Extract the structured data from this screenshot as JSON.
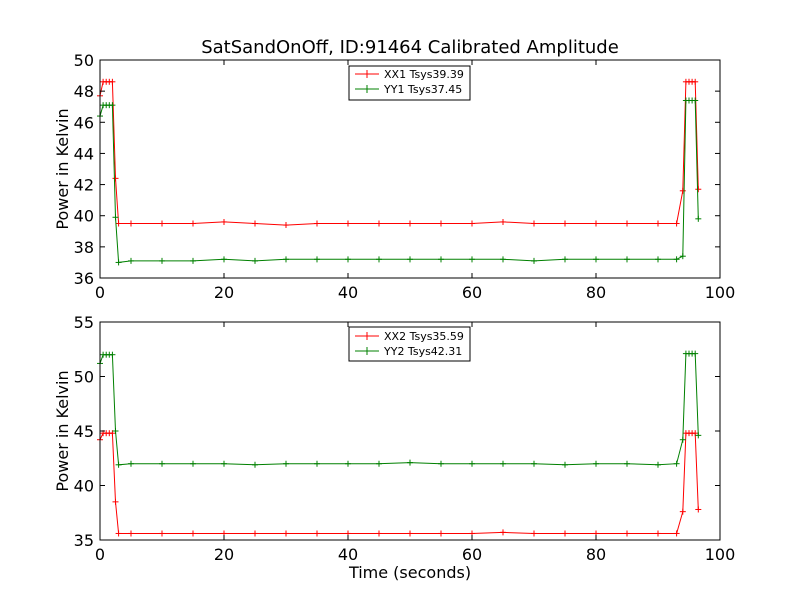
{
  "chart_data": [
    {
      "type": "line",
      "title": "SatSandOnOff, ID:91464 Calibrated Amplitude",
      "xlabel": "",
      "ylabel": "Power in Kelvin",
      "xlim": [
        0,
        100
      ],
      "ylim": [
        36,
        50
      ],
      "xticks": [
        "0",
        "20",
        "40",
        "60",
        "80",
        "100"
      ],
      "yticks": [
        "36",
        "38",
        "40",
        "42",
        "44",
        "46",
        "48",
        "50"
      ],
      "legend_position": "top-center",
      "grid": false,
      "series": [
        {
          "name": "XX1 Tsys39.39",
          "color": "#ff0000",
          "x": [
            0,
            0.5,
            1,
            1.5,
            2,
            2.5,
            3,
            5,
            10,
            15,
            20,
            25,
            30,
            35,
            40,
            45,
            50,
            55,
            60,
            65,
            70,
            75,
            80,
            85,
            90,
            93,
            94,
            94.5,
            95,
            95.5,
            96,
            96.5
          ],
          "y": [
            47.7,
            48.6,
            48.6,
            48.6,
            48.6,
            42.4,
            39.5,
            39.5,
            39.5,
            39.5,
            39.6,
            39.5,
            39.4,
            39.5,
            39.5,
            39.5,
            39.5,
            39.5,
            39.5,
            39.6,
            39.5,
            39.5,
            39.5,
            39.5,
            39.5,
            39.5,
            41.6,
            48.6,
            48.6,
            48.6,
            48.6,
            41.7
          ]
        },
        {
          "name": "YY1 Tsys37.45",
          "color": "#008000",
          "x": [
            0,
            0.5,
            1,
            1.5,
            2,
            2.5,
            3,
            5,
            10,
            15,
            20,
            25,
            30,
            35,
            40,
            45,
            50,
            55,
            60,
            65,
            70,
            75,
            80,
            85,
            90,
            93,
            94,
            94.5,
            95,
            95.5,
            96,
            96.5
          ],
          "y": [
            46.4,
            47.1,
            47.1,
            47.1,
            47.1,
            39.9,
            37.0,
            37.1,
            37.1,
            37.1,
            37.2,
            37.1,
            37.2,
            37.2,
            37.2,
            37.2,
            37.2,
            37.2,
            37.2,
            37.2,
            37.1,
            37.2,
            37.2,
            37.2,
            37.2,
            37.2,
            37.4,
            47.4,
            47.4,
            47.4,
            47.4,
            39.8
          ]
        }
      ]
    },
    {
      "type": "line",
      "title": "",
      "xlabel": "Time (seconds)",
      "ylabel": "Power in Kelvin",
      "xlim": [
        0,
        100
      ],
      "ylim": [
        35,
        55
      ],
      "xticks": [
        "0",
        "20",
        "40",
        "60",
        "80",
        "100"
      ],
      "yticks": [
        "35",
        "40",
        "45",
        "50",
        "55"
      ],
      "legend_position": "top-center",
      "grid": false,
      "series": [
        {
          "name": "XX2 Tsys35.59",
          "color": "#ff0000",
          "x": [
            0,
            0.5,
            1,
            1.5,
            2,
            2.5,
            3,
            5,
            10,
            15,
            20,
            25,
            30,
            35,
            40,
            45,
            50,
            55,
            60,
            65,
            70,
            75,
            80,
            85,
            90,
            93,
            94,
            94.5,
            95,
            95.5,
            96,
            96.5
          ],
          "y": [
            44.2,
            44.8,
            44.8,
            44.8,
            44.8,
            38.5,
            35.6,
            35.6,
            35.6,
            35.6,
            35.6,
            35.6,
            35.6,
            35.6,
            35.6,
            35.6,
            35.6,
            35.6,
            35.6,
            35.7,
            35.6,
            35.6,
            35.6,
            35.6,
            35.6,
            35.6,
            37.6,
            44.8,
            44.8,
            44.8,
            44.8,
            37.8
          ]
        },
        {
          "name": "YY2 Tsys42.31",
          "color": "#008000",
          "x": [
            0,
            0.5,
            1,
            1.5,
            2,
            2.5,
            3,
            5,
            10,
            15,
            20,
            25,
            30,
            35,
            40,
            45,
            50,
            55,
            60,
            65,
            70,
            75,
            80,
            85,
            90,
            93,
            94,
            94.5,
            95,
            95.5,
            96,
            96.5
          ],
          "y": [
            51.2,
            52.0,
            52.0,
            52.0,
            52.0,
            45.0,
            41.9,
            42.0,
            42.0,
            42.0,
            42.0,
            41.9,
            42.0,
            42.0,
            42.0,
            42.0,
            42.1,
            42.0,
            42.0,
            42.0,
            42.0,
            41.9,
            42.0,
            42.0,
            41.9,
            42.0,
            44.2,
            52.1,
            52.1,
            52.1,
            52.1,
            44.6
          ]
        }
      ]
    }
  ]
}
